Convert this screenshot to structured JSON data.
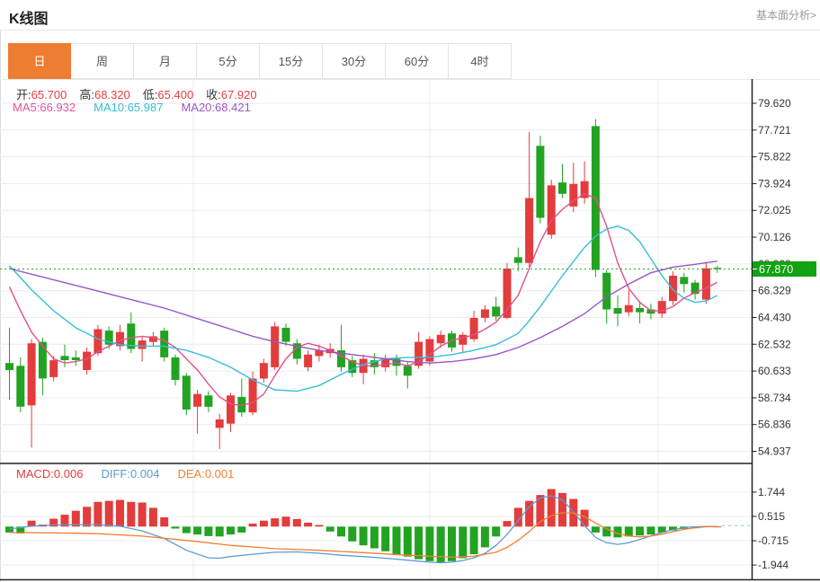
{
  "page": {
    "title": "K线图",
    "top_link": "基本面分析>"
  },
  "tabs": {
    "items": [
      "日",
      "周",
      "月",
      "5分",
      "15分",
      "30分",
      "60分",
      "4时"
    ],
    "active_index": 0
  },
  "legend": {
    "ohlc": [
      {
        "label": "开:",
        "value": "65.700"
      },
      {
        "label": "高:",
        "value": "68.320"
      },
      {
        "label": "低:",
        "value": "65.400"
      },
      {
        "label": "收:",
        "value": "67.920"
      }
    ],
    "ma": [
      {
        "label": "MA5:",
        "value": "66.932",
        "color": "#e0559c"
      },
      {
        "label": "MA10:",
        "value": "65.987",
        "color": "#35bdd4"
      },
      {
        "label": "MA20:",
        "value": "68.421",
        "color": "#9a57c6"
      }
    ],
    "macd": [
      {
        "label": "MACD:",
        "value": "0.006",
        "color": "#e33c3c"
      },
      {
        "label": "DIFF:",
        "value": "0.004",
        "color": "#5b9bd5"
      },
      {
        "label": "DEA:",
        "value": "0.001",
        "color": "#f08030"
      }
    ]
  },
  "colors": {
    "up": "#e33c3c",
    "down": "#22a322",
    "badge": "#12a312",
    "ma5": "#e2508a",
    "ma10": "#38bdd8",
    "ma20": "#9a57c6",
    "diff": "#5b9bd5",
    "dea": "#f08030",
    "grid": "#ececec",
    "axis": "#222",
    "tick_text": "#333",
    "current_line": "#1fa81f",
    "macd_zero_dash": "#8ecfe8",
    "active_tab": "#ed7d31"
  },
  "axes": {
    "price_ticks": [
      "79.620",
      "77.721",
      "75.822",
      "73.924",
      "72.025",
      "70.126",
      "68.228",
      "66.329",
      "64.430",
      "62.532",
      "60.633",
      "58.734",
      "56.836",
      "54.937"
    ],
    "macd_ticks": [
      "1.744",
      "0.515",
      "-0.715",
      "-1.944"
    ],
    "current_price_label": "67.870"
  },
  "chart_data": {
    "type": "candlestick+macd",
    "title": "K线图",
    "timeframe": "日",
    "price_axis_range": [
      54.937,
      79.62
    ],
    "macd_axis_range": [
      -1.944,
      1.744
    ],
    "current_price": 67.87,
    "grid": true,
    "candles_ohlc_note": "each candle = [open, high, low, close]; red = up, green = down",
    "candles": [
      [
        61.2,
        63.7,
        58.6,
        60.7
      ],
      [
        61.0,
        61.6,
        57.7,
        58.1
      ],
      [
        58.2,
        62.9,
        55.2,
        62.6
      ],
      [
        62.7,
        63.0,
        58.9,
        60.1
      ],
      [
        60.2,
        61.7,
        59.9,
        61.4
      ],
      [
        61.7,
        62.5,
        60.9,
        61.4
      ],
      [
        61.6,
        62.1,
        61.0,
        61.4
      ],
      [
        60.7,
        62.3,
        60.4,
        62.0
      ],
      [
        61.9,
        63.9,
        61.7,
        63.6
      ],
      [
        63.5,
        63.8,
        62.2,
        62.5
      ],
      [
        62.4,
        63.9,
        62.1,
        63.4
      ],
      [
        64.0,
        64.8,
        61.9,
        62.2
      ],
      [
        62.2,
        63.1,
        61.3,
        62.8
      ],
      [
        62.7,
        63.4,
        62.4,
        63.1
      ],
      [
        63.5,
        63.7,
        61.3,
        61.6
      ],
      [
        61.6,
        61.8,
        59.6,
        60.0
      ],
      [
        60.3,
        60.5,
        57.5,
        57.9
      ],
      [
        58.1,
        59.3,
        56.2,
        59.0
      ],
      [
        58.9,
        59.2,
        57.7,
        58.1
      ],
      [
        56.6,
        57.6,
        55.1,
        57.2
      ],
      [
        56.9,
        59.1,
        56.3,
        58.9
      ],
      [
        58.8,
        60.1,
        57.4,
        57.7
      ],
      [
        57.7,
        60.6,
        57.5,
        60.1
      ],
      [
        60.1,
        61.5,
        59.8,
        61.2
      ],
      [
        60.9,
        64.1,
        60.7,
        63.8
      ],
      [
        63.7,
        64.0,
        62.4,
        62.7
      ],
      [
        62.6,
        62.9,
        61.1,
        61.5
      ],
      [
        60.9,
        62.1,
        60.6,
        61.8
      ],
      [
        61.7,
        62.5,
        61.3,
        62.1
      ],
      [
        61.9,
        62.6,
        61.6,
        62.2
      ],
      [
        62.1,
        63.9,
        60.6,
        60.9
      ],
      [
        61.4,
        61.7,
        60.2,
        60.5
      ],
      [
        60.5,
        61.8,
        59.7,
        61.5
      ],
      [
        61.4,
        61.9,
        60.4,
        60.9
      ],
      [
        60.9,
        61.8,
        60.6,
        61.5
      ],
      [
        61.5,
        61.8,
        60.3,
        61.0
      ],
      [
        61.0,
        61.3,
        59.4,
        60.3
      ],
      [
        61.0,
        63.4,
        60.8,
        62.7
      ],
      [
        61.3,
        63.1,
        61.0,
        62.9
      ],
      [
        62.6,
        63.5,
        62.3,
        63.2
      ],
      [
        63.3,
        63.5,
        62.0,
        62.3
      ],
      [
        62.5,
        63.4,
        61.9,
        63.2
      ],
      [
        62.9,
        64.9,
        62.7,
        64.4
      ],
      [
        64.4,
        65.3,
        64.1,
        65.0
      ],
      [
        65.2,
        65.9,
        64.2,
        64.5
      ],
      [
        64.4,
        68.3,
        64.3,
        67.9
      ],
      [
        68.7,
        69.4,
        67.7,
        68.3
      ],
      [
        68.3,
        77.6,
        68.0,
        72.9
      ],
      [
        76.6,
        77.3,
        71.1,
        71.5
      ],
      [
        70.3,
        74.2,
        70.0,
        73.8
      ],
      [
        74.0,
        75.3,
        72.9,
        73.2
      ],
      [
        72.3,
        75.4,
        71.9,
        73.9
      ],
      [
        72.9,
        75.5,
        72.5,
        74.1
      ],
      [
        78.0,
        78.5,
        67.3,
        67.8
      ],
      [
        67.6,
        67.8,
        64.0,
        65.0
      ],
      [
        65.1,
        66.0,
        63.8,
        64.7
      ],
      [
        64.8,
        66.4,
        64.5,
        65.3
      ],
      [
        65.1,
        65.6,
        64.0,
        64.8
      ],
      [
        65.0,
        65.4,
        64.3,
        64.7
      ],
      [
        64.7,
        65.9,
        64.4,
        65.6
      ],
      [
        65.6,
        67.7,
        65.3,
        67.4
      ],
      [
        67.3,
        67.6,
        66.2,
        66.8
      ],
      [
        66.9,
        67.1,
        65.7,
        66.1
      ],
      [
        65.7,
        68.32,
        65.4,
        67.92
      ],
      [
        67.95,
        68.1,
        67.6,
        67.87
      ]
    ],
    "ma5_points": [
      [
        0,
        66.6
      ],
      [
        1,
        64.9
      ],
      [
        2,
        63.4
      ],
      [
        3,
        62.4
      ],
      [
        4,
        61.5
      ],
      [
        5,
        61.2
      ],
      [
        6,
        61.3
      ],
      [
        7,
        61.5
      ],
      [
        8,
        62.0
      ],
      [
        9,
        62.4
      ],
      [
        10,
        62.8
      ],
      [
        11,
        63.0
      ],
      [
        12,
        63.1
      ],
      [
        13,
        63.0
      ],
      [
        14,
        62.8
      ],
      [
        15,
        62.3
      ],
      [
        16,
        61.5
      ],
      [
        17,
        60.7
      ],
      [
        18,
        59.7
      ],
      [
        19,
        58.8
      ],
      [
        20,
        58.3
      ],
      [
        21,
        58.2
      ],
      [
        22,
        58.4
      ],
      [
        23,
        59.0
      ],
      [
        24,
        60.3
      ],
      [
        25,
        61.5
      ],
      [
        26,
        62.3
      ],
      [
        27,
        62.6
      ],
      [
        28,
        62.4
      ],
      [
        29,
        62.1
      ],
      [
        30,
        61.7
      ],
      [
        31,
        61.3
      ],
      [
        32,
        61.0
      ],
      [
        33,
        61.0
      ],
      [
        34,
        61.1
      ],
      [
        35,
        61.2
      ],
      [
        36,
        61.0
      ],
      [
        37,
        61.3
      ],
      [
        38,
        61.8
      ],
      [
        39,
        62.4
      ],
      [
        40,
        62.8
      ],
      [
        41,
        63.0
      ],
      [
        42,
        63.2
      ],
      [
        43,
        63.6
      ],
      [
        44,
        64.1
      ],
      [
        45,
        65.0
      ],
      [
        46,
        66.0
      ],
      [
        47,
        67.9
      ],
      [
        48,
        69.8
      ],
      [
        49,
        71.3
      ],
      [
        50,
        72.1
      ],
      [
        51,
        72.7
      ],
      [
        52,
        73.2
      ],
      [
        53,
        72.9
      ],
      [
        54,
        70.9
      ],
      [
        55,
        68.3
      ],
      [
        56,
        66.5
      ],
      [
        57,
        65.5
      ],
      [
        58,
        64.9
      ],
      [
        59,
        64.9
      ],
      [
        60,
        65.2
      ],
      [
        61,
        65.8
      ],
      [
        62,
        66.2
      ],
      [
        63,
        66.5
      ],
      [
        64,
        66.93
      ]
    ],
    "ma10_points": [
      [
        0,
        68.1
      ],
      [
        2,
        66.4
      ],
      [
        4,
        64.9
      ],
      [
        6,
        63.7
      ],
      [
        8,
        62.9
      ],
      [
        10,
        62.5
      ],
      [
        12,
        62.4
      ],
      [
        14,
        62.4
      ],
      [
        16,
        62.1
      ],
      [
        18,
        61.6
      ],
      [
        20,
        60.9
      ],
      [
        22,
        60.0
      ],
      [
        24,
        59.3
      ],
      [
        26,
        59.2
      ],
      [
        28,
        59.6
      ],
      [
        30,
        60.4
      ],
      [
        32,
        61.1
      ],
      [
        34,
        61.5
      ],
      [
        36,
        61.6
      ],
      [
        38,
        61.6
      ],
      [
        40,
        61.8
      ],
      [
        42,
        62.1
      ],
      [
        44,
        62.5
      ],
      [
        46,
        63.3
      ],
      [
        47,
        64.2
      ],
      [
        48,
        65.2
      ],
      [
        49,
        66.3
      ],
      [
        50,
        67.4
      ],
      [
        51,
        68.4
      ],
      [
        52,
        69.4
      ],
      [
        53,
        70.2
      ],
      [
        54,
        70.7
      ],
      [
        55,
        70.9
      ],
      [
        56,
        70.6
      ],
      [
        57,
        69.8
      ],
      [
        58,
        68.6
      ],
      [
        59,
        67.4
      ],
      [
        60,
        66.4
      ],
      [
        61,
        65.8
      ],
      [
        62,
        65.5
      ],
      [
        63,
        65.6
      ],
      [
        64,
        65.99
      ]
    ],
    "ma20_points": [
      [
        0,
        67.9
      ],
      [
        2,
        67.5
      ],
      [
        4,
        67.1
      ],
      [
        6,
        66.7
      ],
      [
        8,
        66.3
      ],
      [
        10,
        65.9
      ],
      [
        12,
        65.5
      ],
      [
        14,
        65.1
      ],
      [
        16,
        64.6
      ],
      [
        18,
        64.1
      ],
      [
        20,
        63.6
      ],
      [
        22,
        63.1
      ],
      [
        24,
        62.7
      ],
      [
        26,
        62.4
      ],
      [
        28,
        62.1
      ],
      [
        30,
        61.9
      ],
      [
        32,
        61.7
      ],
      [
        34,
        61.5
      ],
      [
        36,
        61.3
      ],
      [
        38,
        61.2
      ],
      [
        40,
        61.3
      ],
      [
        42,
        61.5
      ],
      [
        44,
        61.8
      ],
      [
        46,
        62.3
      ],
      [
        48,
        63.0
      ],
      [
        50,
        63.8
      ],
      [
        52,
        64.7
      ],
      [
        54,
        65.9
      ],
      [
        56,
        66.8
      ],
      [
        58,
        67.6
      ],
      [
        60,
        68.0
      ],
      [
        62,
        68.2
      ],
      [
        64,
        68.42
      ]
    ],
    "macd": {
      "histogram": [
        -0.3,
        -0.35,
        0.3,
        0.1,
        0.4,
        0.6,
        0.8,
        1.0,
        1.25,
        1.3,
        1.35,
        1.25,
        1.22,
        0.95,
        0.47,
        -0.1,
        -0.33,
        -0.4,
        -0.48,
        -0.5,
        -0.4,
        -0.3,
        0.15,
        0.3,
        0.42,
        0.5,
        0.38,
        0.2,
        0.08,
        -0.25,
        -0.5,
        -0.75,
        -0.95,
        -1.1,
        -1.25,
        -1.4,
        -1.52,
        -1.65,
        -1.75,
        -1.82,
        -1.75,
        -1.6,
        -1.4,
        -1.05,
        -0.5,
        0.28,
        0.95,
        1.3,
        1.6,
        1.9,
        1.7,
        1.4,
        0.85,
        -0.3,
        -0.5,
        -0.55,
        -0.5,
        -0.45,
        -0.4,
        -0.3,
        -0.2,
        -0.12,
        -0.08,
        0.02,
        0.006
      ],
      "diff_points": [
        [
          0,
          -0.12
        ],
        [
          2,
          0.02
        ],
        [
          4,
          0.08
        ],
        [
          6,
          0.1
        ],
        [
          8,
          0.1
        ],
        [
          10,
          0.02
        ],
        [
          12,
          -0.22
        ],
        [
          14,
          -0.6
        ],
        [
          16,
          -1.2
        ],
        [
          18,
          -1.58
        ],
        [
          19,
          -1.6
        ],
        [
          20,
          -1.52
        ],
        [
          22,
          -1.4
        ],
        [
          24,
          -1.3
        ],
        [
          26,
          -1.28
        ],
        [
          28,
          -1.35
        ],
        [
          30,
          -1.45
        ],
        [
          32,
          -1.52
        ],
        [
          34,
          -1.6
        ],
        [
          36,
          -1.7
        ],
        [
          38,
          -1.8
        ],
        [
          39,
          -1.83
        ],
        [
          40,
          -1.8
        ],
        [
          41,
          -1.72
        ],
        [
          42,
          -1.58
        ],
        [
          43,
          -1.35
        ],
        [
          44,
          -0.95
        ],
        [
          45,
          -0.4
        ],
        [
          46,
          0.3
        ],
        [
          47,
          1.0
        ],
        [
          48,
          1.45
        ],
        [
          49,
          1.56
        ],
        [
          50,
          1.35
        ],
        [
          51,
          0.75
        ],
        [
          52,
          0.05
        ],
        [
          53,
          -0.55
        ],
        [
          54,
          -0.82
        ],
        [
          55,
          -0.9
        ],
        [
          56,
          -0.82
        ],
        [
          57,
          -0.65
        ],
        [
          58,
          -0.47
        ],
        [
          59,
          -0.3
        ],
        [
          60,
          -0.16
        ],
        [
          61,
          -0.06
        ],
        [
          62,
          -0.01
        ],
        [
          63,
          0.01
        ],
        [
          64,
          0.004
        ]
      ],
      "dea_points": [
        [
          0,
          -0.3
        ],
        [
          4,
          -0.32
        ],
        [
          8,
          -0.36
        ],
        [
          12,
          -0.48
        ],
        [
          16,
          -0.7
        ],
        [
          20,
          -0.95
        ],
        [
          24,
          -1.12
        ],
        [
          28,
          -1.2
        ],
        [
          32,
          -1.32
        ],
        [
          36,
          -1.45
        ],
        [
          40,
          -1.55
        ],
        [
          42,
          -1.5
        ],
        [
          44,
          -1.3
        ],
        [
          45,
          -1.05
        ],
        [
          46,
          -0.7
        ],
        [
          47,
          -0.25
        ],
        [
          48,
          0.25
        ],
        [
          49,
          0.55
        ],
        [
          50,
          0.7
        ],
        [
          51,
          0.68
        ],
        [
          52,
          0.5
        ],
        [
          53,
          0.18
        ],
        [
          54,
          -0.12
        ],
        [
          55,
          -0.35
        ],
        [
          56,
          -0.48
        ],
        [
          57,
          -0.52
        ],
        [
          58,
          -0.48
        ],
        [
          59,
          -0.38
        ],
        [
          60,
          -0.26
        ],
        [
          61,
          -0.14
        ],
        [
          62,
          -0.06
        ],
        [
          63,
          -0.01
        ],
        [
          64,
          0.001
        ]
      ]
    }
  }
}
